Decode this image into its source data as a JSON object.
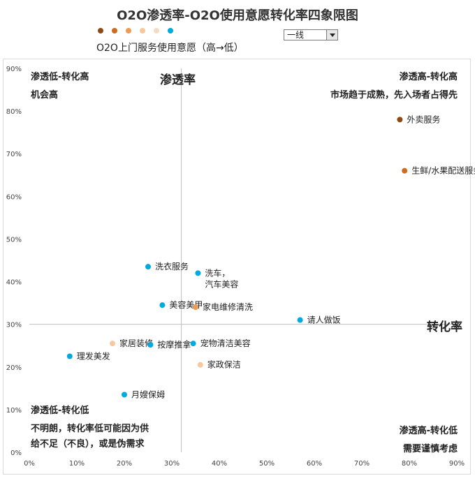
{
  "title": "O2O渗透率-O2O使用意愿转化率四象限图",
  "legend": {
    "text": "O2O上门服务使用意愿（高→低）",
    "colors": [
      "#8c4a16",
      "#cf6b1d",
      "#ef9a55",
      "#f7c79d",
      "#f5dcc3",
      "#00a9e0"
    ]
  },
  "dropdown": {
    "value": "一线"
  },
  "quadrants": {
    "top_left": [
      "渗透低-转化高",
      "机会高"
    ],
    "top_right": [
      "渗透高-转化高",
      "市场趋于成熟，先入场者占得先"
    ],
    "bottom_left": [
      "渗透低-转化低",
      "不明朗，转化率低可能因为供",
      "给不足（不良），或是伪需求"
    ],
    "bottom_right": [
      "渗透高-转化低",
      "需要谨慎考虑"
    ]
  },
  "axis_names": {
    "x": "转化率",
    "y": "渗透率"
  },
  "chart_data": {
    "type": "scatter",
    "title": "O2O渗透率-O2O使用意愿转化率四象限图",
    "xlabel": "转化率",
    "ylabel": "渗透率",
    "xlim": [
      0,
      0.9
    ],
    "ylim": [
      0,
      0.9
    ],
    "x_ticks": [
      "0%",
      "10%",
      "20%",
      "30%",
      "40%",
      "50%",
      "60%",
      "70%",
      "80%",
      "90%"
    ],
    "y_ticks": [
      "0%",
      "10%",
      "20%",
      "30%",
      "40%",
      "50%",
      "60%",
      "70%",
      "80%",
      "90%"
    ],
    "divider": {
      "x": 0.32,
      "y": 0.3
    },
    "grid": false,
    "points": [
      {
        "label": "外卖服务",
        "x": 0.78,
        "y": 0.78,
        "color": "#8c4a16"
      },
      {
        "label": "生鲜/水果配送服务",
        "x": 0.79,
        "y": 0.66,
        "color": "#cf6b1d"
      },
      {
        "label": "洗衣服务",
        "x": 0.25,
        "y": 0.435,
        "color": "#00a9e0"
      },
      {
        "label": "洗车，\n汽车美容",
        "x": 0.355,
        "y": 0.42,
        "color": "#00a9e0"
      },
      {
        "label": "美容美甲",
        "x": 0.28,
        "y": 0.345,
        "color": "#00a9e0"
      },
      {
        "label": "家电维修清洗",
        "x": 0.35,
        "y": 0.34,
        "color": "#ef9a55"
      },
      {
        "label": "请人做饭",
        "x": 0.57,
        "y": 0.31,
        "color": "#00a9e0"
      },
      {
        "label": "家居装修",
        "x": 0.175,
        "y": 0.255,
        "color": "#f7c79d"
      },
      {
        "label": "按摩推拿",
        "x": 0.255,
        "y": 0.252,
        "color": "#00a9e0"
      },
      {
        "label": "宠物清洁美容",
        "x": 0.345,
        "y": 0.255,
        "color": "#00a9e0"
      },
      {
        "label": "理发美发",
        "x": 0.085,
        "y": 0.225,
        "color": "#00a9e0"
      },
      {
        "label": "家政保洁",
        "x": 0.36,
        "y": 0.205,
        "color": "#f7c79d"
      },
      {
        "label": "月嫂保姆",
        "x": 0.2,
        "y": 0.135,
        "color": "#00a9e0"
      }
    ]
  }
}
